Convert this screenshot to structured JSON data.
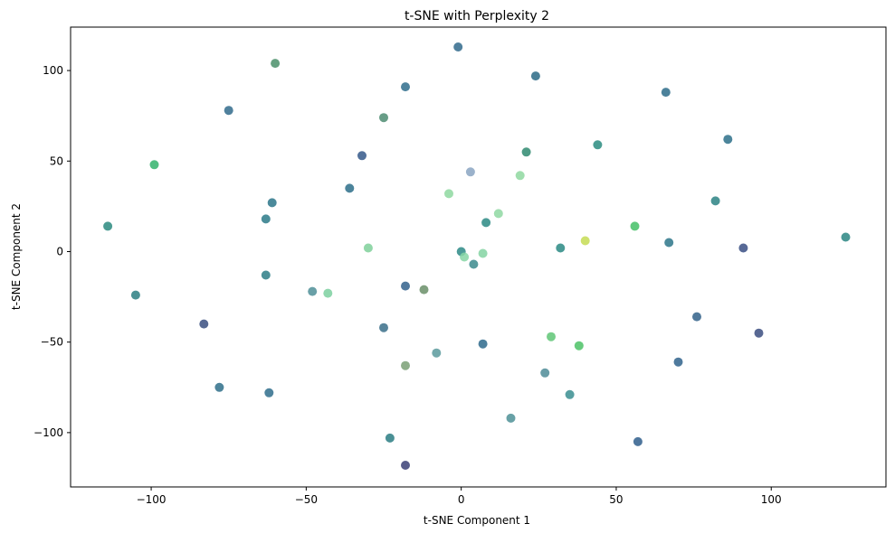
{
  "chart_data": {
    "type": "scatter",
    "title": "t-SNE with Perplexity 2",
    "xlabel": "t-SNE Component 1",
    "ylabel": "t-SNE Component 2",
    "xlim": [
      -126,
      137
    ],
    "ylim": [
      -130,
      124
    ],
    "xticks": [
      -100,
      -50,
      0,
      50,
      100
    ],
    "yticks": [
      -100,
      -50,
      0,
      50,
      100
    ],
    "xtick_labels": [
      "−100",
      "−50",
      "0",
      "50",
      "100"
    ],
    "ytick_labels": [
      "−100",
      "−50",
      "0",
      "50",
      "100"
    ],
    "grid": false,
    "points": [
      {
        "x": -114,
        "y": 14,
        "color": "#2a8a7f"
      },
      {
        "x": -105,
        "y": -24,
        "color": "#2b7f82"
      },
      {
        "x": -99,
        "y": 48,
        "color": "#33b36c"
      },
      {
        "x": -83,
        "y": -40,
        "color": "#3a4f80"
      },
      {
        "x": -78,
        "y": -75,
        "color": "#2f6f8a"
      },
      {
        "x": -75,
        "y": 78,
        "color": "#316b8c"
      },
      {
        "x": -62,
        "y": -78,
        "color": "#2f6d8c"
      },
      {
        "x": -63,
        "y": 18,
        "color": "#2c7a88"
      },
      {
        "x": -61,
        "y": 27,
        "color": "#2c758a"
      },
      {
        "x": -63,
        "y": -13,
        "color": "#2b7d86"
      },
      {
        "x": -60,
        "y": 104,
        "color": "#4a8f6a"
      },
      {
        "x": -48,
        "y": -22,
        "color": "#4f8f98"
      },
      {
        "x": -43,
        "y": -23,
        "color": "#7cd0a0"
      },
      {
        "x": -36,
        "y": 35,
        "color": "#2d6f8a"
      },
      {
        "x": -32,
        "y": 53,
        "color": "#34588a"
      },
      {
        "x": -30,
        "y": 2,
        "color": "#7fd09a"
      },
      {
        "x": -25,
        "y": 74,
        "color": "#4e8c72"
      },
      {
        "x": -25,
        "y": -42,
        "color": "#3a6e8a"
      },
      {
        "x": -23,
        "y": -103,
        "color": "#2a7d82"
      },
      {
        "x": -18,
        "y": 91,
        "color": "#2f6d8c"
      },
      {
        "x": -18,
        "y": -19,
        "color": "#33618c"
      },
      {
        "x": -18,
        "y": -63,
        "color": "#7aa075"
      },
      {
        "x": -18,
        "y": -118,
        "color": "#3a3f75"
      },
      {
        "x": -12,
        "y": -21,
        "color": "#6a8f68"
      },
      {
        "x": -8,
        "y": -56,
        "color": "#5a9a9c"
      },
      {
        "x": -4,
        "y": 32,
        "color": "#8ed8a0"
      },
      {
        "x": -1,
        "y": 113,
        "color": "#316a8c"
      },
      {
        "x": 0,
        "y": 0,
        "color": "#2d8a86"
      },
      {
        "x": 1,
        "y": -3,
        "color": "#86d6a4"
      },
      {
        "x": 3,
        "y": 44,
        "color": "#8aa4c2"
      },
      {
        "x": 4,
        "y": -7,
        "color": "#3b8a8c"
      },
      {
        "x": 7,
        "y": -1,
        "color": "#84d4a2"
      },
      {
        "x": 7,
        "y": -51,
        "color": "#2e6a8c"
      },
      {
        "x": 8,
        "y": 16,
        "color": "#2c8a84"
      },
      {
        "x": 12,
        "y": 21,
        "color": "#8fd8a2"
      },
      {
        "x": 16,
        "y": -92,
        "color": "#4e9097"
      },
      {
        "x": 19,
        "y": 42,
        "color": "#8fd8a0"
      },
      {
        "x": 21,
        "y": 55,
        "color": "#2f8a70"
      },
      {
        "x": 24,
        "y": 97,
        "color": "#2c6a86"
      },
      {
        "x": 27,
        "y": -67,
        "color": "#4f8c98"
      },
      {
        "x": 29,
        "y": -47,
        "color": "#5fc576"
      },
      {
        "x": 32,
        "y": 2,
        "color": "#2a8a84"
      },
      {
        "x": 35,
        "y": -79,
        "color": "#3a8e90"
      },
      {
        "x": 38,
        "y": -52,
        "color": "#4cc266"
      },
      {
        "x": 40,
        "y": 6,
        "color": "#c6dc54"
      },
      {
        "x": 44,
        "y": 59,
        "color": "#2a8c80"
      },
      {
        "x": 56,
        "y": 14,
        "color": "#44c066"
      },
      {
        "x": 57,
        "y": -105,
        "color": "#2f5e8c"
      },
      {
        "x": 66,
        "y": 88,
        "color": "#2d6c8a"
      },
      {
        "x": 67,
        "y": 5,
        "color": "#2d768a"
      },
      {
        "x": 70,
        "y": -61,
        "color": "#30638c"
      },
      {
        "x": 76,
        "y": -36,
        "color": "#32618a"
      },
      {
        "x": 82,
        "y": 28,
        "color": "#2c8284"
      },
      {
        "x": 86,
        "y": 62,
        "color": "#2d708a"
      },
      {
        "x": 91,
        "y": 2,
        "color": "#3a4f84"
      },
      {
        "x": 96,
        "y": -45,
        "color": "#3b4e80"
      },
      {
        "x": 124,
        "y": 8,
        "color": "#2a8682"
      }
    ]
  }
}
